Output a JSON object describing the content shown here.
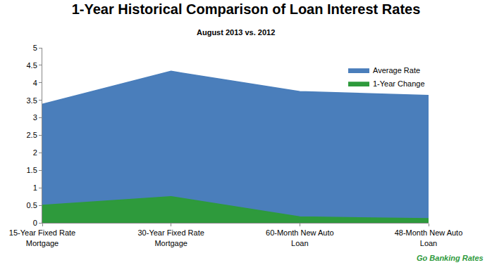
{
  "chart_data": {
    "type": "area",
    "title": "1-Year Historical Comparison of Loan Interest Rates",
    "subtitle": "August 2013 vs. 2012",
    "categories": [
      "15-Year Fixed Rate Mortgage",
      "30-Year Fixed Rate Mortgage",
      "60-Month New Auto Loan",
      "48-Month New Auto Loan"
    ],
    "series": [
      {
        "name": "Average Rate",
        "color": "#4a7ebb",
        "values": [
          3.39,
          4.33,
          3.75,
          3.64
        ]
      },
      {
        "name": "1-Year Change",
        "color": "#2e9a3c",
        "values": [
          0.5,
          0.75,
          0.17,
          0.12
        ]
      }
    ],
    "ylim": [
      0,
      5
    ],
    "yticks": [
      0,
      0.5,
      1,
      1.5,
      2,
      2.5,
      3,
      3.5,
      4,
      4.5,
      5
    ],
    "grid": false,
    "stacked": false,
    "legend": "top-right",
    "annotations": [
      "Go Banking Rates"
    ]
  }
}
